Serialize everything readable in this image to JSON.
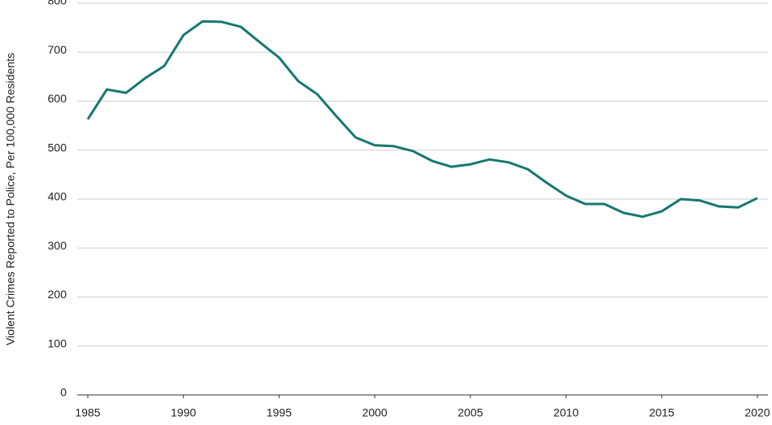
{
  "chart_data": {
    "type": "line",
    "y_label": "Violent Crimes Reported to Police, Per 100,000 Residents",
    "x": [
      1985,
      1986,
      1987,
      1988,
      1989,
      1990,
      1991,
      1992,
      1993,
      1994,
      1995,
      1996,
      1997,
      1998,
      1999,
      2000,
      2001,
      2002,
      2003,
      2004,
      2005,
      2006,
      2007,
      2008,
      2009,
      2010,
      2011,
      2012,
      2013,
      2014,
      2015,
      2016,
      2017,
      2018,
      2019,
      2020
    ],
    "series": [
      {
        "color": "#16786f",
        "values": [
          563,
          624,
          617,
          647,
          672,
          735,
          763,
          762,
          752,
          720,
          689,
          641,
          614,
          569,
          526,
          510,
          508,
          498,
          478,
          466,
          471,
          481,
          475,
          461,
          433,
          407,
          390,
          390,
          372,
          364,
          375,
          400,
          397,
          385,
          383,
          402
        ]
      }
    ],
    "xlim": [
      1985,
      2020
    ],
    "xticks": [
      1985,
      1990,
      1995,
      2000,
      2005,
      2010,
      2015,
      2020
    ],
    "ylim": [
      0,
      800
    ],
    "yticks": [
      0,
      100,
      200,
      300,
      400,
      500,
      600,
      700,
      800
    ],
    "grid": true
  }
}
